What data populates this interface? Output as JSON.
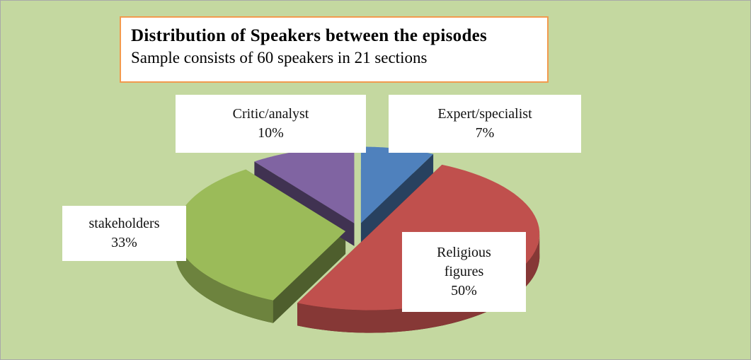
{
  "chart_data": {
    "type": "pie",
    "title": "Distribution of Speakers between the episodes",
    "subtitle": "Sample consists of 60 speakers in 21 sections",
    "categories": [
      "Expert/specialist",
      "Religious figures",
      "stakeholders",
      "Critic/analyst"
    ],
    "values": [
      7,
      50,
      33,
      10
    ],
    "value_labels": [
      "7%",
      "50%",
      "33%",
      "10%"
    ],
    "colors": [
      "#4f81bd",
      "#c0504d",
      "#9bbb59",
      "#8064a2"
    ]
  }
}
